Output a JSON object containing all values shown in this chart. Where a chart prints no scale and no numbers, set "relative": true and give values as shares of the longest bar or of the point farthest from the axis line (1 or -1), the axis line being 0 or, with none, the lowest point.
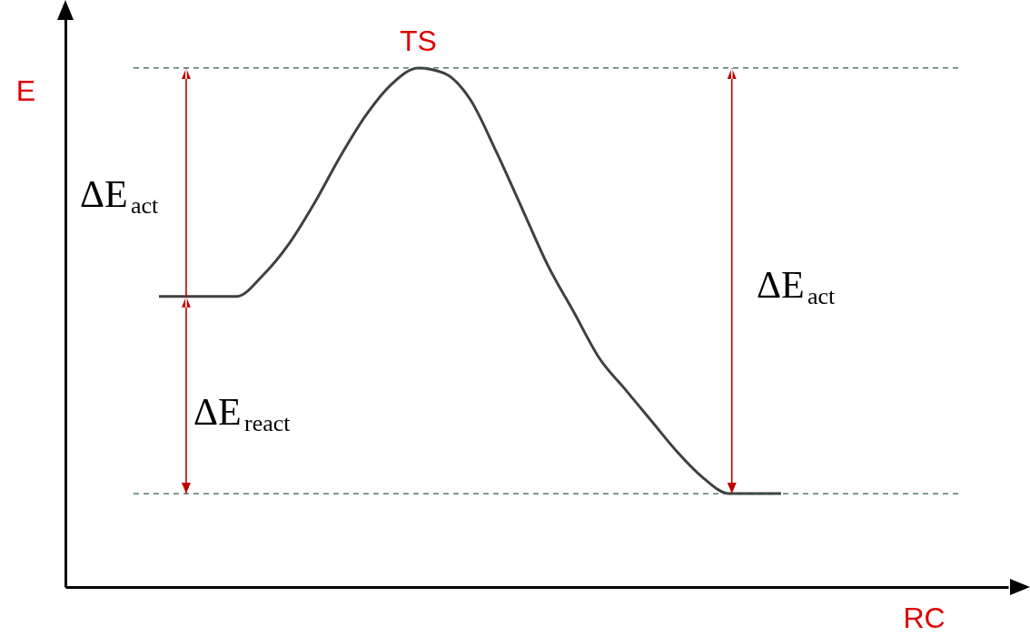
{
  "chart_data": {
    "type": "line",
    "relative": true,
    "xlabel": "RC",
    "ylabel": "E",
    "categories": [
      null,
      null,
      null,
      null,
      null,
      null,
      null,
      null,
      null,
      null,
      null,
      null,
      null,
      null,
      null,
      null,
      null,
      null,
      null,
      null,
      null,
      null,
      null,
      null,
      null
    ],
    "series": [
      {
        "color": "#404040",
        "values": [
          0.56,
          0.56,
          0.56,
          0.56,
          0.6,
          0.66,
          0.74,
          0.83,
          0.91,
          0.97,
          1,
          0.99,
          0.94,
          0.84,
          0.73,
          0.62,
          0.53,
          0.44,
          0.38,
          0.32,
          0.26,
          0.21,
          0.18,
          0.18,
          0.18
        ]
      }
    ],
    "ref_lines": [
      {
        "axis": "y",
        "value": 1,
        "color": "#2f5f5f",
        "line_style": "dashed"
      },
      {
        "axis": "y",
        "value": 0.18,
        "color": "#2f5f5f",
        "line_style": "dashed"
      }
    ],
    "annotations": [
      {
        "text": "TS",
        "y": 1
      },
      "ΔE$_{act}$",
      "ΔE$_{react}$",
      "ΔE$_{act}$"
    ],
    "marker": "none",
    "grid": false,
    "tick_labels": false
  }
}
